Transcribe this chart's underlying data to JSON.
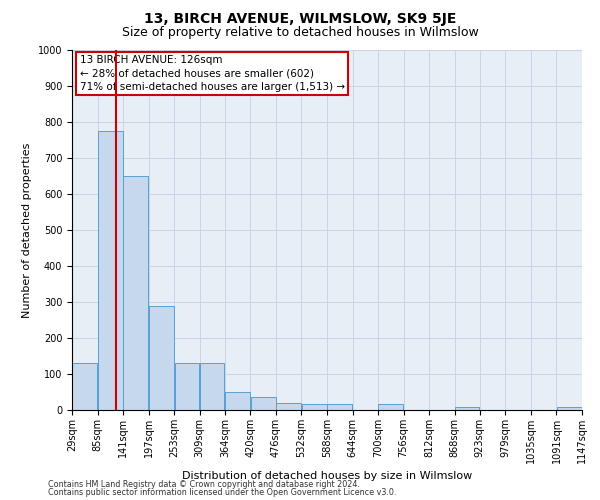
{
  "title": "13, BIRCH AVENUE, WILMSLOW, SK9 5JE",
  "subtitle": "Size of property relative to detached houses in Wilmslow",
  "xlabel": "Distribution of detached houses by size in Wilmslow",
  "ylabel": "Number of detached properties",
  "annotation_title": "13 BIRCH AVENUE: 126sqm",
  "annotation_line1": "← 28% of detached houses are smaller (602)",
  "annotation_line2": "71% of semi-detached houses are larger (1,513) →",
  "footer1": "Contains HM Land Registry data © Crown copyright and database right 2024.",
  "footer2": "Contains public sector information licensed under the Open Government Licence v3.0.",
  "bin_edges": [
    29,
    85,
    141,
    197,
    253,
    309,
    364,
    420,
    476,
    532,
    588,
    644,
    700,
    756,
    812,
    868,
    923,
    979,
    1035,
    1091,
    1147
  ],
  "bin_labels": [
    "29sqm",
    "85sqm",
    "141sqm",
    "197sqm",
    "253sqm",
    "309sqm",
    "364sqm",
    "420sqm",
    "476sqm",
    "532sqm",
    "588sqm",
    "644sqm",
    "700sqm",
    "756sqm",
    "812sqm",
    "868sqm",
    "923sqm",
    "979sqm",
    "1035sqm",
    "1091sqm",
    "1147sqm"
  ],
  "bar_heights": [
    130,
    775,
    650,
    290,
    130,
    130,
    50,
    35,
    20,
    18,
    18,
    0,
    18,
    0,
    0,
    8,
    0,
    0,
    0,
    8
  ],
  "bar_color": "#c5d8ed",
  "bar_edge_color": "#5a9fd4",
  "property_line_x": 126,
  "property_line_color": "#cc0000",
  "ylim": [
    0,
    1000
  ],
  "yticks": [
    0,
    100,
    200,
    300,
    400,
    500,
    600,
    700,
    800,
    900,
    1000
  ],
  "grid_color": "#c8d4e8",
  "background_color": "#e8eef6",
  "title_fontsize": 10,
  "subtitle_fontsize": 9,
  "axis_label_fontsize": 8,
  "tick_fontsize": 7,
  "annotation_box_color": "#ffffff",
  "annotation_box_edge": "#cc0000",
  "annotation_fontsize": 7.5
}
